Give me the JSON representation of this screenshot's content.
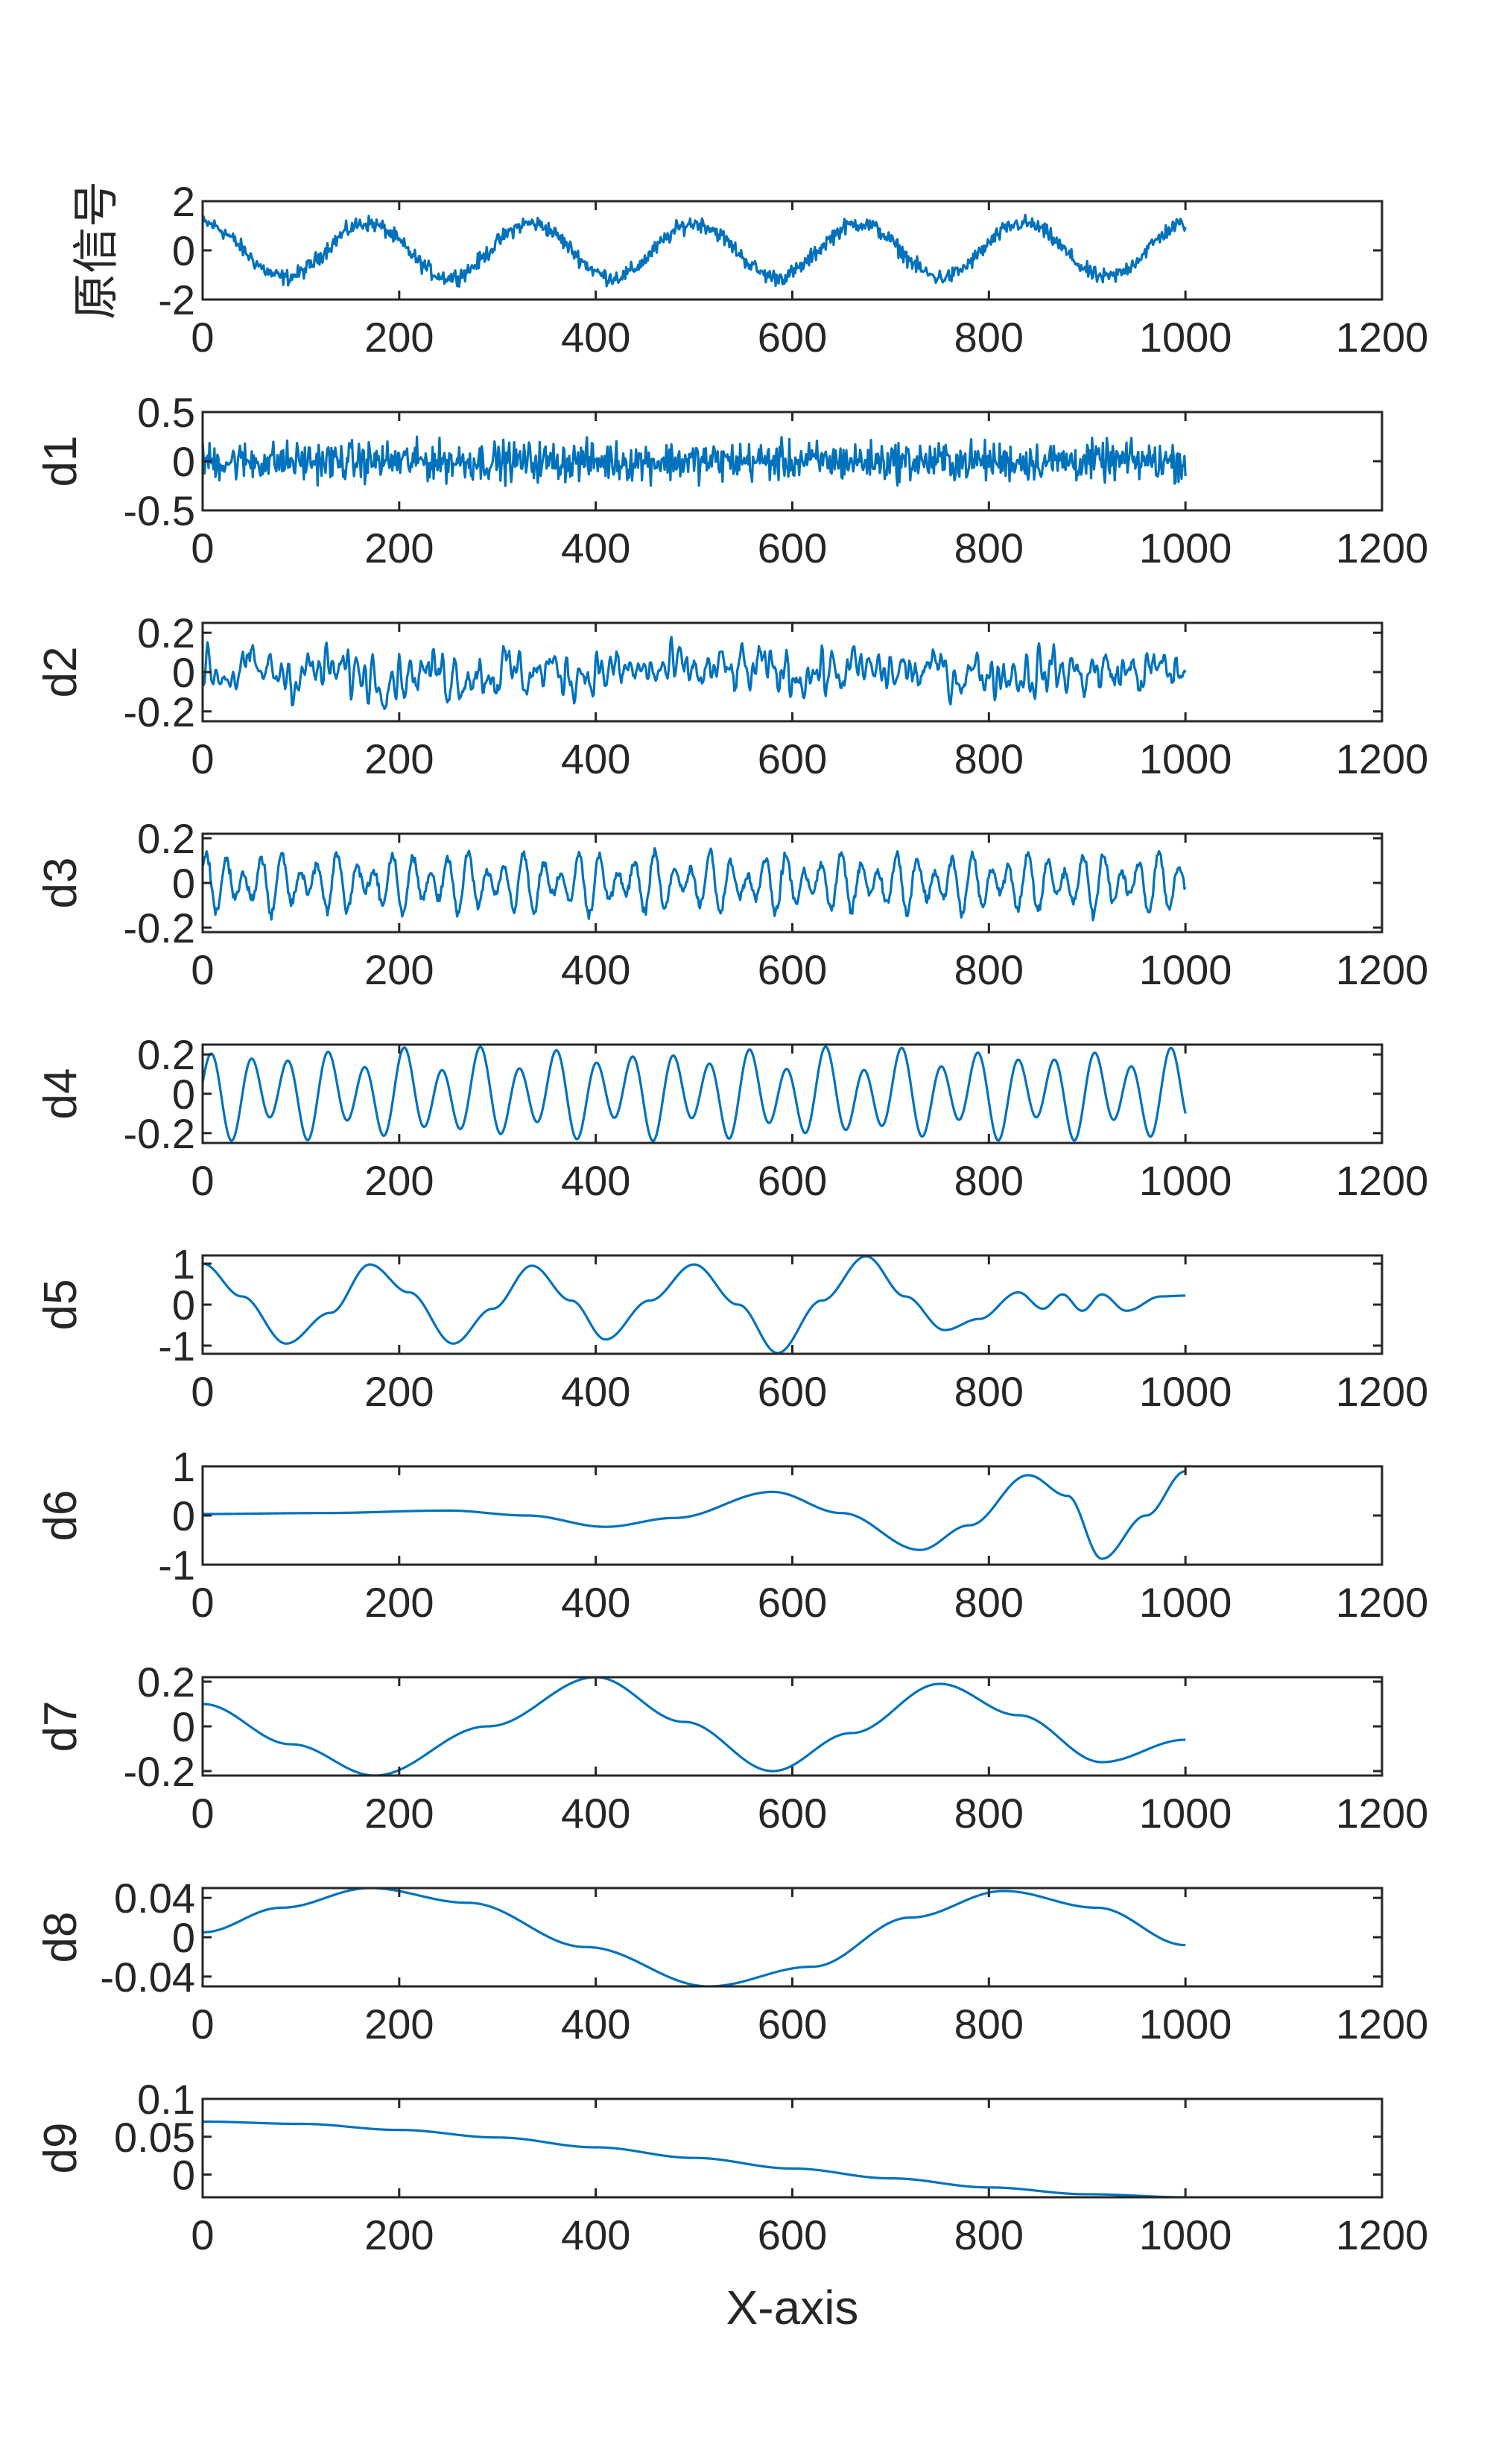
{
  "chart_data": {
    "type": "line",
    "xlabel": "X-axis",
    "line_color": "#0072BD",
    "axis_color": "#262626",
    "x_range": [
      0,
      1000
    ],
    "xlim": [
      0,
      1200
    ],
    "xticks": [
      0,
      200,
      400,
      600,
      800,
      1000,
      1200
    ],
    "panels": [
      {
        "ylabel": "原信号",
        "ylim": [
          -2,
          2
        ],
        "yticks": [
          -2,
          0,
          2
        ],
        "yticklabels": [
          "-2",
          "0",
          "2"
        ],
        "components": [
          {
            "type": "sine",
            "amp": 1.1,
            "period": 167,
            "phase": 1.57
          }
        ],
        "noise": 0.28,
        "ymin_clip": -2,
        "ymax_clip": 2
      },
      {
        "ylabel": "d1",
        "ylim": [
          -0.5,
          0.5
        ],
        "yticks": [
          -0.5,
          0,
          0.5
        ],
        "yticklabels": [
          "-0.5",
          "0",
          "0.5"
        ],
        "components": [],
        "noise": 0.17,
        "ymin_clip": -0.45,
        "ymax_clip": 0.45
      },
      {
        "ylabel": "d2",
        "ylim": [
          -0.25,
          0.25
        ],
        "yticks": [
          -0.2,
          0,
          0.2
        ],
        "yticklabels": [
          "-0.2",
          "0",
          "0.2"
        ],
        "components": [],
        "noise": 0.09,
        "smooth": 2,
        "ymin_clip": -0.25,
        "ymax_clip": 0.25
      },
      {
        "ylabel": "d3",
        "ylim": [
          -0.22,
          0.22
        ],
        "yticks": [
          -0.2,
          0,
          0.2
        ],
        "yticklabels": [
          "-0.2",
          "0",
          "0.2"
        ],
        "components": [
          {
            "type": "sine",
            "amp": 0.09,
            "period": 19,
            "phase": 0.3
          },
          {
            "type": "sine",
            "amp": 0.05,
            "period": 27,
            "phase": 1.1
          }
        ],
        "noise": 0.02,
        "ymin_clip": -0.2,
        "ymax_clip": 0.22
      },
      {
        "ylabel": "d4",
        "ylim": [
          -0.25,
          0.25
        ],
        "yticks": [
          -0.2,
          0,
          0.2
        ],
        "yticklabels": [
          "-0.2",
          "0",
          "0.2"
        ],
        "components": [
          {
            "type": "sine",
            "amp": 0.18,
            "period": 39,
            "phase": 0.0
          },
          {
            "type": "sine",
            "amp": 0.06,
            "period": 71,
            "phase": 1.9
          }
        ],
        "noise": 0.0,
        "ymin_clip": -0.25,
        "ymax_clip": 0.25
      },
      {
        "ylabel": "d5",
        "ylim": [
          -1.2,
          1.2
        ],
        "yticks": [
          -1,
          0,
          1
        ],
        "yticklabels": [
          "-1",
          "0",
          "1"
        ],
        "points": [
          [
            0,
            1.0
          ],
          [
            40,
            0.2
          ],
          [
            85,
            -0.95
          ],
          [
            130,
            -0.2
          ],
          [
            170,
            0.98
          ],
          [
            210,
            0.3
          ],
          [
            255,
            -0.95
          ],
          [
            295,
            -0.1
          ],
          [
            335,
            0.95
          ],
          [
            375,
            0.1
          ],
          [
            410,
            -0.85
          ],
          [
            455,
            0.1
          ],
          [
            500,
            0.98
          ],
          [
            545,
            0.0
          ],
          [
            585,
            -1.18
          ],
          [
            630,
            0.1
          ],
          [
            675,
            1.18
          ],
          [
            715,
            0.2
          ],
          [
            755,
            -0.62
          ],
          [
            790,
            -0.35
          ],
          [
            830,
            0.3
          ],
          [
            855,
            -0.1
          ],
          [
            875,
            0.25
          ],
          [
            895,
            -0.15
          ],
          [
            915,
            0.25
          ],
          [
            940,
            -0.15
          ],
          [
            975,
            0.2
          ],
          [
            1000,
            0.22
          ]
        ]
      },
      {
        "ylabel": "d6",
        "ylim": [
          -1,
          1
        ],
        "yticks": [
          -1,
          0,
          1
        ],
        "yticklabels": [
          "-1",
          "0",
          "1"
        ],
        "points": [
          [
            0,
            0.03
          ],
          [
            120,
            0.05
          ],
          [
            250,
            0.1
          ],
          [
            330,
            0.0
          ],
          [
            410,
            -0.23
          ],
          [
            480,
            -0.05
          ],
          [
            580,
            0.48
          ],
          [
            650,
            0.05
          ],
          [
            730,
            -0.7
          ],
          [
            780,
            -0.2
          ],
          [
            840,
            0.82
          ],
          [
            880,
            0.4
          ],
          [
            915,
            -0.88
          ],
          [
            960,
            0.0
          ],
          [
            1000,
            0.9
          ]
        ]
      },
      {
        "ylabel": "d7",
        "ylim": [
          -0.22,
          0.22
        ],
        "yticks": [
          -0.2,
          0,
          0.2
        ],
        "yticklabels": [
          "-0.2",
          "0",
          "0.2"
        ],
        "points": [
          [
            0,
            0.1
          ],
          [
            90,
            -0.08
          ],
          [
            175,
            -0.22
          ],
          [
            290,
            0.0
          ],
          [
            400,
            0.22
          ],
          [
            490,
            0.02
          ],
          [
            580,
            -0.2
          ],
          [
            660,
            -0.03
          ],
          [
            750,
            0.19
          ],
          [
            830,
            0.05
          ],
          [
            915,
            -0.16
          ],
          [
            1000,
            -0.06
          ]
        ]
      },
      {
        "ylabel": "d8",
        "ylim": [
          -0.05,
          0.05
        ],
        "yticks": [
          -0.04,
          0,
          0.04
        ],
        "yticklabels": [
          "-0.04",
          "0",
          "0.04"
        ],
        "points": [
          [
            0,
            0.005
          ],
          [
            80,
            0.03
          ],
          [
            170,
            0.05
          ],
          [
            270,
            0.035
          ],
          [
            390,
            -0.01
          ],
          [
            515,
            -0.05
          ],
          [
            620,
            -0.03
          ],
          [
            720,
            0.02
          ],
          [
            815,
            0.047
          ],
          [
            910,
            0.03
          ],
          [
            1000,
            -0.008
          ]
        ]
      },
      {
        "ylabel": "d9",
        "ylim": [
          -0.03,
          0.1
        ],
        "yticks": [
          0,
          0.05,
          0.1
        ],
        "yticklabels": [
          "0",
          "0.05",
          "0.1"
        ],
        "points": [
          [
            0,
            0.07
          ],
          [
            100,
            0.067
          ],
          [
            200,
            0.059
          ],
          [
            300,
            0.049
          ],
          [
            400,
            0.036
          ],
          [
            500,
            0.022
          ],
          [
            600,
            0.008
          ],
          [
            700,
            -0.005
          ],
          [
            800,
            -0.017
          ],
          [
            900,
            -0.026
          ],
          [
            1000,
            -0.03
          ]
        ]
      }
    ]
  }
}
